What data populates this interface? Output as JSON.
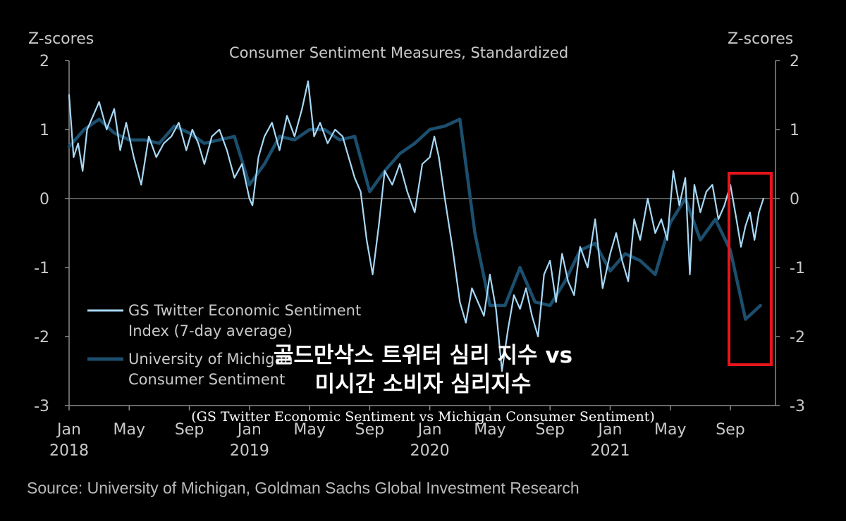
{
  "chart_data": {
    "type": "line",
    "title": "Consumer Sentiment Measures, Standardized",
    "ylabel_left": "Z-scores",
    "ylabel_right": "Z-scores",
    "ylim": [
      -3,
      2
    ],
    "yticks": [
      "2",
      "1",
      "0",
      "-1",
      "-2",
      "-3"
    ],
    "x_range": [
      0,
      47
    ],
    "x_ticks": [
      {
        "m": 0,
        "label": "Jan",
        "year": "2018"
      },
      {
        "m": 4,
        "label": "May",
        "year": ""
      },
      {
        "m": 8,
        "label": "Sep",
        "year": ""
      },
      {
        "m": 12,
        "label": "Jan",
        "year": "2019"
      },
      {
        "m": 16,
        "label": "May",
        "year": ""
      },
      {
        "m": 20,
        "label": "Sep",
        "year": ""
      },
      {
        "m": 24,
        "label": "Jan",
        "year": "2020"
      },
      {
        "m": 28,
        "label": "May",
        "year": ""
      },
      {
        "m": 32,
        "label": "Sep",
        "year": ""
      },
      {
        "m": 36,
        "label": "Jan",
        "year": "2021"
      },
      {
        "m": 40,
        "label": "May",
        "year": ""
      },
      {
        "m": 44,
        "label": "Sep",
        "year": ""
      }
    ],
    "series": [
      {
        "name": "GS Twitter Economic Sentiment Index (7-day average)",
        "legend_lines": [
          "GS Twitter Economic Sentiment",
          "Index (7-day average)"
        ],
        "color": "#a8d8f5",
        "x": [
          0,
          0.3,
          0.6,
          0.9,
          1.2,
          1.6,
          2,
          2.5,
          3,
          3.4,
          3.8,
          4.3,
          4.8,
          5.3,
          5.8,
          6.3,
          6.8,
          7.3,
          7.8,
          8.2,
          8.6,
          9,
          9.5,
          10,
          10.5,
          11,
          11.5,
          12,
          12.2,
          12.6,
          13,
          13.5,
          14,
          14.5,
          15,
          15.5,
          15.9,
          16.3,
          16.7,
          17.2,
          17.7,
          18.2,
          18.6,
          19,
          19.4,
          19.8,
          20.2,
          20.6,
          21,
          21.5,
          22,
          22.5,
          23,
          23.5,
          24,
          24.3,
          24.6,
          25,
          25.5,
          26,
          26.4,
          26.8,
          27.2,
          27.6,
          28,
          28.4,
          28.8,
          29.2,
          29.6,
          30,
          30.4,
          30.8,
          31.2,
          31.6,
          32,
          32.4,
          32.8,
          33.2,
          33.6,
          34,
          34.5,
          35,
          35.5,
          36,
          36.4,
          36.8,
          37.2,
          37.6,
          38,
          38.5,
          39,
          39.4,
          39.8,
          40.2,
          40.6,
          41,
          41.3,
          41.6,
          42,
          42.4,
          42.8,
          43.2,
          43.6,
          44,
          44.4,
          44.7,
          45,
          45.3,
          45.6,
          45.9,
          46.2
        ],
        "y": [
          1.5,
          0.6,
          0.8,
          0.4,
          1.0,
          1.2,
          1.4,
          1.0,
          1.3,
          0.7,
          1.1,
          0.6,
          0.2,
          0.9,
          0.6,
          0.8,
          0.9,
          1.1,
          0.7,
          1.0,
          0.8,
          0.5,
          0.9,
          1.0,
          0.7,
          0.3,
          0.5,
          0.0,
          -0.1,
          0.6,
          0.9,
          1.1,
          0.7,
          1.2,
          0.9,
          1.3,
          1.7,
          0.9,
          1.1,
          0.8,
          1.0,
          0.9,
          0.6,
          0.3,
          0.1,
          -0.6,
          -1.1,
          -0.4,
          0.4,
          0.2,
          0.5,
          0.1,
          -0.2,
          0.5,
          0.6,
          0.9,
          0.6,
          0.0,
          -0.7,
          -1.5,
          -1.8,
          -1.3,
          -1.5,
          -1.7,
          -1.1,
          -1.6,
          -2.5,
          -1.9,
          -1.4,
          -1.6,
          -1.3,
          -1.7,
          -2.0,
          -1.1,
          -0.9,
          -1.5,
          -0.8,
          -1.2,
          -1.4,
          -0.7,
          -1.0,
          -0.3,
          -1.3,
          -0.8,
          -0.5,
          -0.9,
          -1.2,
          -0.3,
          -0.6,
          0.0,
          -0.5,
          -0.3,
          -0.6,
          0.4,
          -0.1,
          0.3,
          -1.1,
          0.2,
          -0.2,
          0.1,
          0.2,
          -0.3,
          -0.1,
          0.2,
          -0.3,
          -0.7,
          -0.4,
          -0.2,
          -0.6,
          -0.2,
          0.0
        ],
        "weight": 2.5
      },
      {
        "name": "University of Michigan Consumer Sentiment",
        "legend_lines": [
          "University of Michigan",
          "Consumer Sentiment"
        ],
        "color": "#1c4f6e",
        "x": [
          0,
          1,
          2,
          3,
          4,
          5,
          6,
          7,
          8,
          9,
          10,
          11,
          12,
          13,
          14,
          15,
          16,
          17,
          18,
          19,
          20,
          21,
          22,
          23,
          24,
          25,
          26,
          27,
          28,
          29,
          30,
          31,
          32,
          33,
          34,
          35,
          36,
          37,
          38,
          39,
          40,
          41,
          42,
          43,
          44,
          45,
          46
        ],
        "y": [
          0.75,
          1.0,
          1.15,
          0.95,
          0.85,
          0.85,
          0.8,
          1.05,
          0.95,
          0.8,
          0.85,
          0.9,
          0.2,
          0.5,
          0.9,
          0.85,
          1.0,
          1.0,
          0.85,
          0.9,
          0.1,
          0.4,
          0.65,
          0.8,
          1.0,
          1.05,
          1.15,
          -0.5,
          -1.55,
          -1.55,
          -1.0,
          -1.5,
          -1.55,
          -1.2,
          -0.75,
          -0.65,
          -1.05,
          -0.8,
          -0.9,
          -1.1,
          -0.35,
          0.0,
          -0.6,
          -0.3,
          -0.75,
          -1.75,
          -1.55
        ]
      }
    ]
  },
  "overlay": {
    "korean_line1": "골드만삭스 트위터 심리 지수 vs",
    "korean_line2": "미시간 소비자 심리지수",
    "english_caption": "(GS Twitter Economic Sentiment vs Michigan Consumer Sentiment)"
  },
  "source": "Source: University of Michigan, Goldman Sachs Global Investment Research",
  "colors": {
    "background": "#000000",
    "axis": "#8a8a8a",
    "highlight_box": "#e8141b"
  }
}
